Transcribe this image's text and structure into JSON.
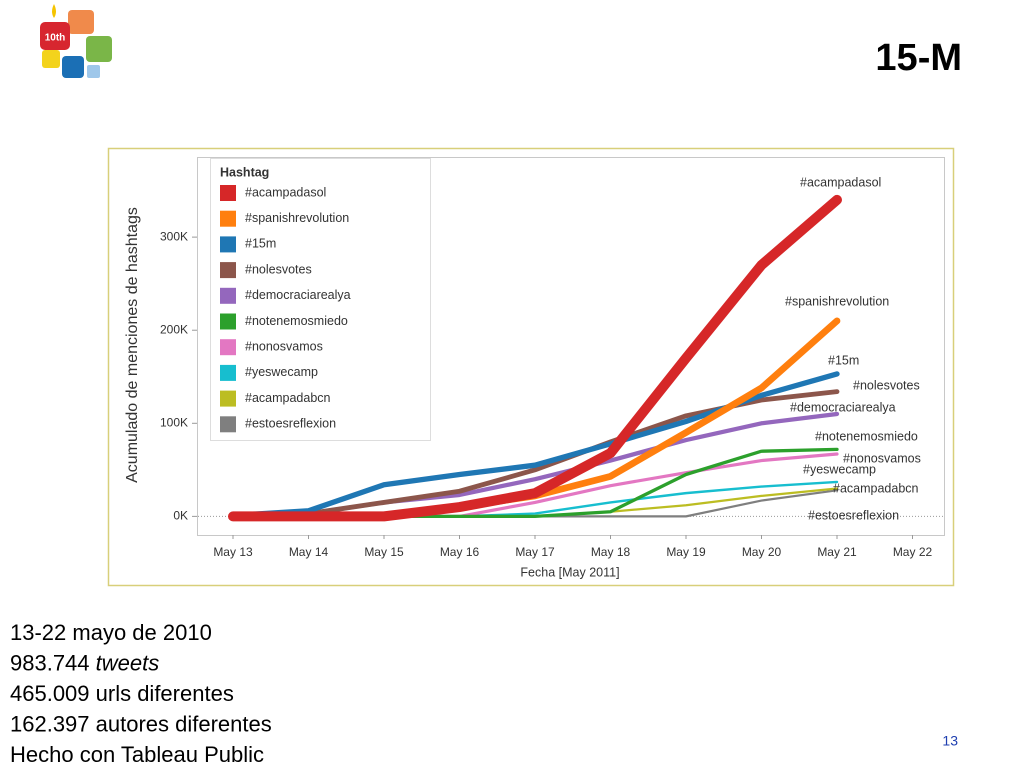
{
  "logo": "10th",
  "title": "15-M",
  "chart_data": {
    "type": "line",
    "y_label": "Acumulado de menciones de hashtags",
    "x_label": "Fecha [May 2011]",
    "legend_title": "Hashtag",
    "legend": "top-left",
    "categories": [
      "May 13",
      "May 14",
      "May 15",
      "May 16",
      "May 17",
      "May 18",
      "May 19",
      "May 20",
      "May 21",
      "May 22"
    ],
    "ylim": [
      -20000,
      385000
    ],
    "yticks": [
      {
        "value": 0,
        "label": "0K"
      },
      {
        "value": 100000,
        "label": "100K"
      },
      {
        "value": 200000,
        "label": "200K"
      },
      {
        "value": 300000,
        "label": "300K"
      }
    ],
    "series": [
      {
        "name": "#acampadasol",
        "color": "#d62728",
        "values": [
          0,
          0,
          0,
          10000,
          25000,
          68000,
          170000,
          270000,
          340000,
          null
        ]
      },
      {
        "name": "#spanishrevolution",
        "color": "#ff7f0e",
        "values": [
          0,
          0,
          0,
          10000,
          22000,
          43000,
          90000,
          138000,
          210000,
          null
        ]
      },
      {
        "name": "#15m",
        "color": "#1f77b4",
        "values": [
          1000,
          6000,
          34000,
          45000,
          55000,
          78000,
          102000,
          130000,
          153000,
          null
        ]
      },
      {
        "name": "#nolesvotes",
        "color": "#8c564b",
        "values": [
          0,
          3000,
          15000,
          27000,
          50000,
          80000,
          108000,
          125000,
          134000,
          null
        ]
      },
      {
        "name": "#democraciarealya",
        "color": "#9467bd",
        "values": [
          0,
          3000,
          15000,
          23000,
          40000,
          60000,
          82000,
          100000,
          110000,
          null
        ]
      },
      {
        "name": "#notenemosmiedo",
        "color": "#2ca02c",
        "values": [
          0,
          0,
          0,
          0,
          0,
          5000,
          45000,
          70000,
          72000,
          null
        ]
      },
      {
        "name": "#nonosvamos",
        "color": "#e377c2",
        "values": [
          0,
          0,
          0,
          0,
          15000,
          33000,
          47000,
          60000,
          67000,
          null
        ]
      },
      {
        "name": "#yeswecamp",
        "color": "#17becf",
        "values": [
          0,
          0,
          0,
          0,
          3000,
          15000,
          25000,
          32000,
          37000,
          null
        ]
      },
      {
        "name": "#acampadabcn",
        "color": "#bcbd22",
        "values": [
          0,
          0,
          0,
          0,
          0,
          5000,
          12000,
          22000,
          30000,
          null
        ]
      },
      {
        "name": "#estoesreflexion",
        "color": "#7f7f7f",
        "values": [
          0,
          0,
          0,
          0,
          0,
          0,
          0,
          17000,
          28000,
          null
        ]
      }
    ]
  },
  "notes": [
    [
      "13-22 mayo de 2010"
    ],
    [
      "983.744 ",
      "tweets"
    ],
    [
      "465.009 urls diferentes"
    ],
    [
      "162.397 autores diferentes"
    ],
    [
      "Hecho con Tableau Public"
    ]
  ],
  "page_number": "13"
}
